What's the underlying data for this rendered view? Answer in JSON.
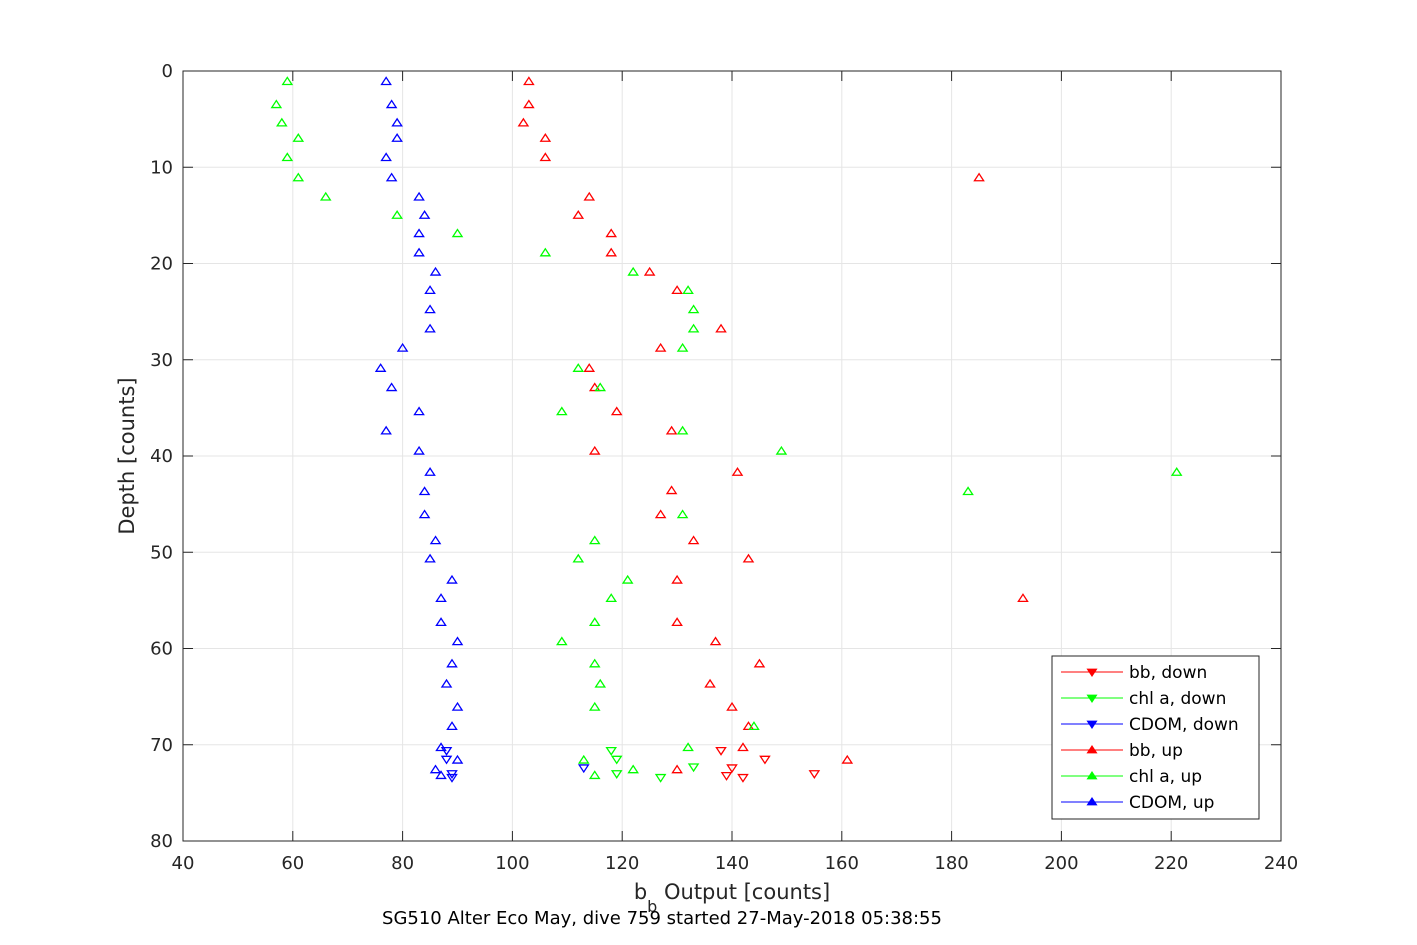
{
  "chart_data": {
    "type": "scatter",
    "caption": "SG510 Alter Eco May, dive 759 started 27-May-2018 05:38:55",
    "xlabel_main": "b",
    "xlabel_sub": "b",
    "xlabel_rest": " Output [counts]",
    "ylabel": "Depth [counts]",
    "xlim": [
      40,
      240
    ],
    "ylim": [
      0,
      80
    ],
    "y_reversed": true,
    "grid": true,
    "legend_position": "bottom-right",
    "x_ticks": [
      "40",
      "60",
      "80",
      "100",
      "120",
      "140",
      "160",
      "180",
      "200",
      "220",
      "240"
    ],
    "y_ticks": [
      "0",
      "10",
      "20",
      "30",
      "40",
      "50",
      "60",
      "70",
      "80"
    ],
    "series": [
      {
        "name": "bb, down",
        "color": "#ff0000",
        "marker": "triangle-down",
        "points": [
          [
            138,
            70.6
          ],
          [
            146,
            71.5
          ],
          [
            140,
            72.4
          ],
          [
            155,
            73.0
          ],
          [
            139,
            73.2
          ],
          [
            142,
            73.4
          ]
        ]
      },
      {
        "name": "chl a, down",
        "color": "#00ff00",
        "marker": "triangle-down",
        "points": [
          [
            118,
            70.6
          ],
          [
            119,
            71.5
          ],
          [
            133,
            72.3
          ],
          [
            119,
            73.0
          ],
          [
            127,
            73.4
          ]
        ]
      },
      {
        "name": "CDOM, down",
        "color": "#0000ff",
        "marker": "triangle-down",
        "points": [
          [
            88,
            70.6
          ],
          [
            88,
            71.5
          ],
          [
            113,
            72.4
          ],
          [
            89,
            73.0
          ],
          [
            89,
            73.4
          ]
        ]
      },
      {
        "name": "bb, up",
        "color": "#ff0000",
        "marker": "triangle-up",
        "points": [
          [
            103,
            1.1
          ],
          [
            103,
            3.5
          ],
          [
            102,
            5.4
          ],
          [
            106,
            7.0
          ],
          [
            106,
            9.0
          ],
          [
            185,
            11.1
          ],
          [
            114,
            13.1
          ],
          [
            112,
            15.0
          ],
          [
            118,
            16.9
          ],
          [
            118,
            18.9
          ],
          [
            125,
            20.9
          ],
          [
            130,
            22.8
          ],
          [
            138,
            26.8
          ],
          [
            127,
            28.8
          ],
          [
            114,
            30.9
          ],
          [
            115,
            32.9
          ],
          [
            119,
            35.4
          ],
          [
            129,
            37.4
          ],
          [
            115,
            39.5
          ],
          [
            141,
            41.7
          ],
          [
            129,
            43.6
          ],
          [
            127,
            46.1
          ],
          [
            133,
            48.8
          ],
          [
            143,
            50.7
          ],
          [
            130,
            52.9
          ],
          [
            193,
            54.8
          ],
          [
            130,
            57.3
          ],
          [
            137,
            59.3
          ],
          [
            145,
            61.6
          ],
          [
            136,
            63.7
          ],
          [
            140,
            66.1
          ],
          [
            143,
            68.1
          ],
          [
            142,
            70.3
          ],
          [
            161,
            71.6
          ],
          [
            130,
            72.6
          ]
        ]
      },
      {
        "name": "chl a, up",
        "color": "#00ff00",
        "marker": "triangle-up",
        "points": [
          [
            59,
            1.1
          ],
          [
            57,
            3.5
          ],
          [
            58,
            5.4
          ],
          [
            61,
            7.0
          ],
          [
            59,
            9.0
          ],
          [
            61,
            11.1
          ],
          [
            66,
            13.1
          ],
          [
            79,
            15.0
          ],
          [
            90,
            16.9
          ],
          [
            106,
            18.9
          ],
          [
            122,
            20.9
          ],
          [
            132,
            22.8
          ],
          [
            133,
            24.8
          ],
          [
            133,
            26.8
          ],
          [
            131,
            28.8
          ],
          [
            112,
            30.9
          ],
          [
            116,
            32.9
          ],
          [
            109,
            35.4
          ],
          [
            131,
            37.4
          ],
          [
            149,
            39.5
          ],
          [
            221,
            41.7
          ],
          [
            183,
            43.7
          ],
          [
            131,
            46.1
          ],
          [
            115,
            48.8
          ],
          [
            112,
            50.7
          ],
          [
            121,
            52.9
          ],
          [
            118,
            54.8
          ],
          [
            115,
            57.3
          ],
          [
            109,
            59.3
          ],
          [
            115,
            61.6
          ],
          [
            116,
            63.7
          ],
          [
            115,
            66.1
          ],
          [
            144,
            68.1
          ],
          [
            132,
            70.3
          ],
          [
            113,
            71.6
          ],
          [
            122,
            72.6
          ],
          [
            115,
            73.2
          ]
        ]
      },
      {
        "name": "CDOM, up",
        "color": "#0000ff",
        "marker": "triangle-up",
        "points": [
          [
            77,
            1.1
          ],
          [
            78,
            3.5
          ],
          [
            79,
            5.4
          ],
          [
            79,
            7.0
          ],
          [
            77,
            9.0
          ],
          [
            78,
            11.1
          ],
          [
            83,
            13.1
          ],
          [
            84,
            15.0
          ],
          [
            83,
            16.9
          ],
          [
            83,
            18.9
          ],
          [
            86,
            20.9
          ],
          [
            85,
            22.8
          ],
          [
            85,
            24.8
          ],
          [
            85,
            26.8
          ],
          [
            80,
            28.8
          ],
          [
            76,
            30.9
          ],
          [
            78,
            32.9
          ],
          [
            83,
            35.4
          ],
          [
            77,
            37.4
          ],
          [
            83,
            39.5
          ],
          [
            85,
            41.7
          ],
          [
            84,
            43.7
          ],
          [
            84,
            46.1
          ],
          [
            86,
            48.8
          ],
          [
            85,
            50.7
          ],
          [
            89,
            52.9
          ],
          [
            87,
            54.8
          ],
          [
            87,
            57.3
          ],
          [
            90,
            59.3
          ],
          [
            89,
            61.6
          ],
          [
            88,
            63.7
          ],
          [
            90,
            66.1
          ],
          [
            89,
            68.1
          ],
          [
            87,
            70.3
          ],
          [
            90,
            71.6
          ],
          [
            86,
            72.6
          ],
          [
            87,
            73.2
          ]
        ]
      }
    ]
  }
}
